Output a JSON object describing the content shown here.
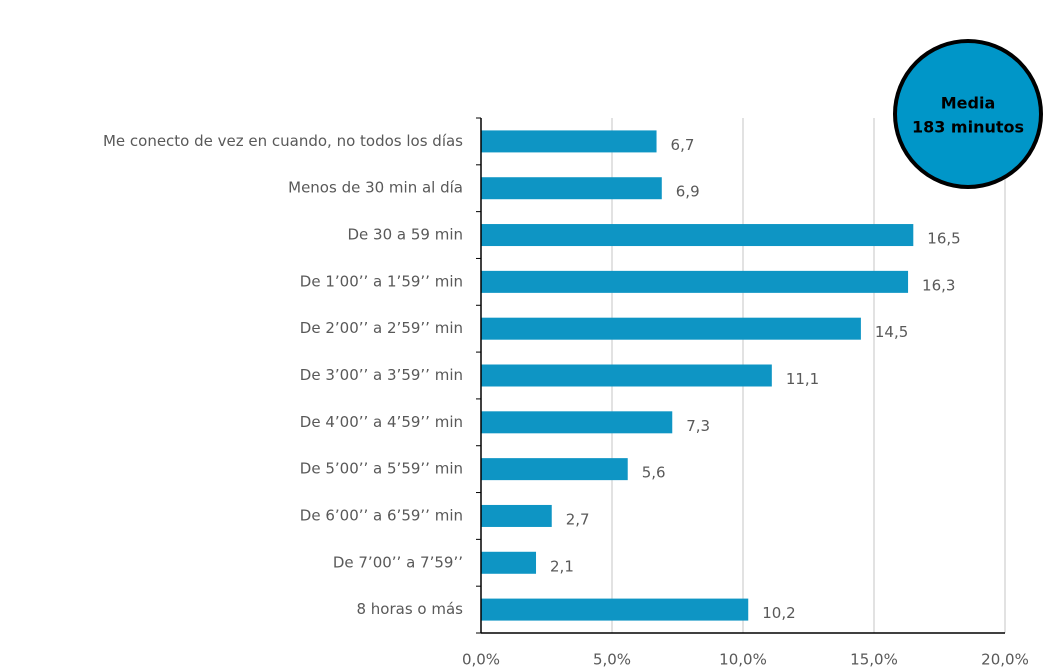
{
  "chart_data": {
    "type": "bar",
    "orientation": "horizontal",
    "categories": [
      "Me conecto de vez en cuando, no todos los días",
      "Menos de 30 min al día",
      "De 30 a 59 min",
      "De 1’00’’ a 1’59’’ min",
      "De 2’00’’ a 2’59’’ min",
      "De 3’00’’ a 3’59’’ min",
      "De 4’00’’ a 4’59’’ min",
      "De 5’00’’ a 5’59’’ min",
      "De 6’00’’ a 6’59’’ min",
      "De 7’00’’ a 7’59’’",
      "8 horas o más"
    ],
    "values": [
      6.7,
      6.9,
      16.5,
      16.3,
      14.5,
      11.1,
      7.3,
      5.6,
      2.7,
      2.1,
      10.2
    ],
    "value_labels": [
      "6,7",
      "6,9",
      "16,5",
      "16,3",
      "14,5",
      "11,1",
      "7,3",
      "5,6",
      "2,7",
      "2,1",
      "10,2"
    ],
    "color": "#0e95c4",
    "xlim": [
      0,
      20
    ],
    "xticks": [
      {
        "value": 0,
        "label": "0,0%"
      },
      {
        "value": 5,
        "label": "5,0%"
      },
      {
        "value": 10,
        "label": "10,0%"
      },
      {
        "value": 15,
        "label": "15,0%"
      },
      {
        "value": 20,
        "label": "20,0%"
      }
    ],
    "grid": true,
    "annotation": [
      "Media",
      "183 minutos"
    ]
  }
}
